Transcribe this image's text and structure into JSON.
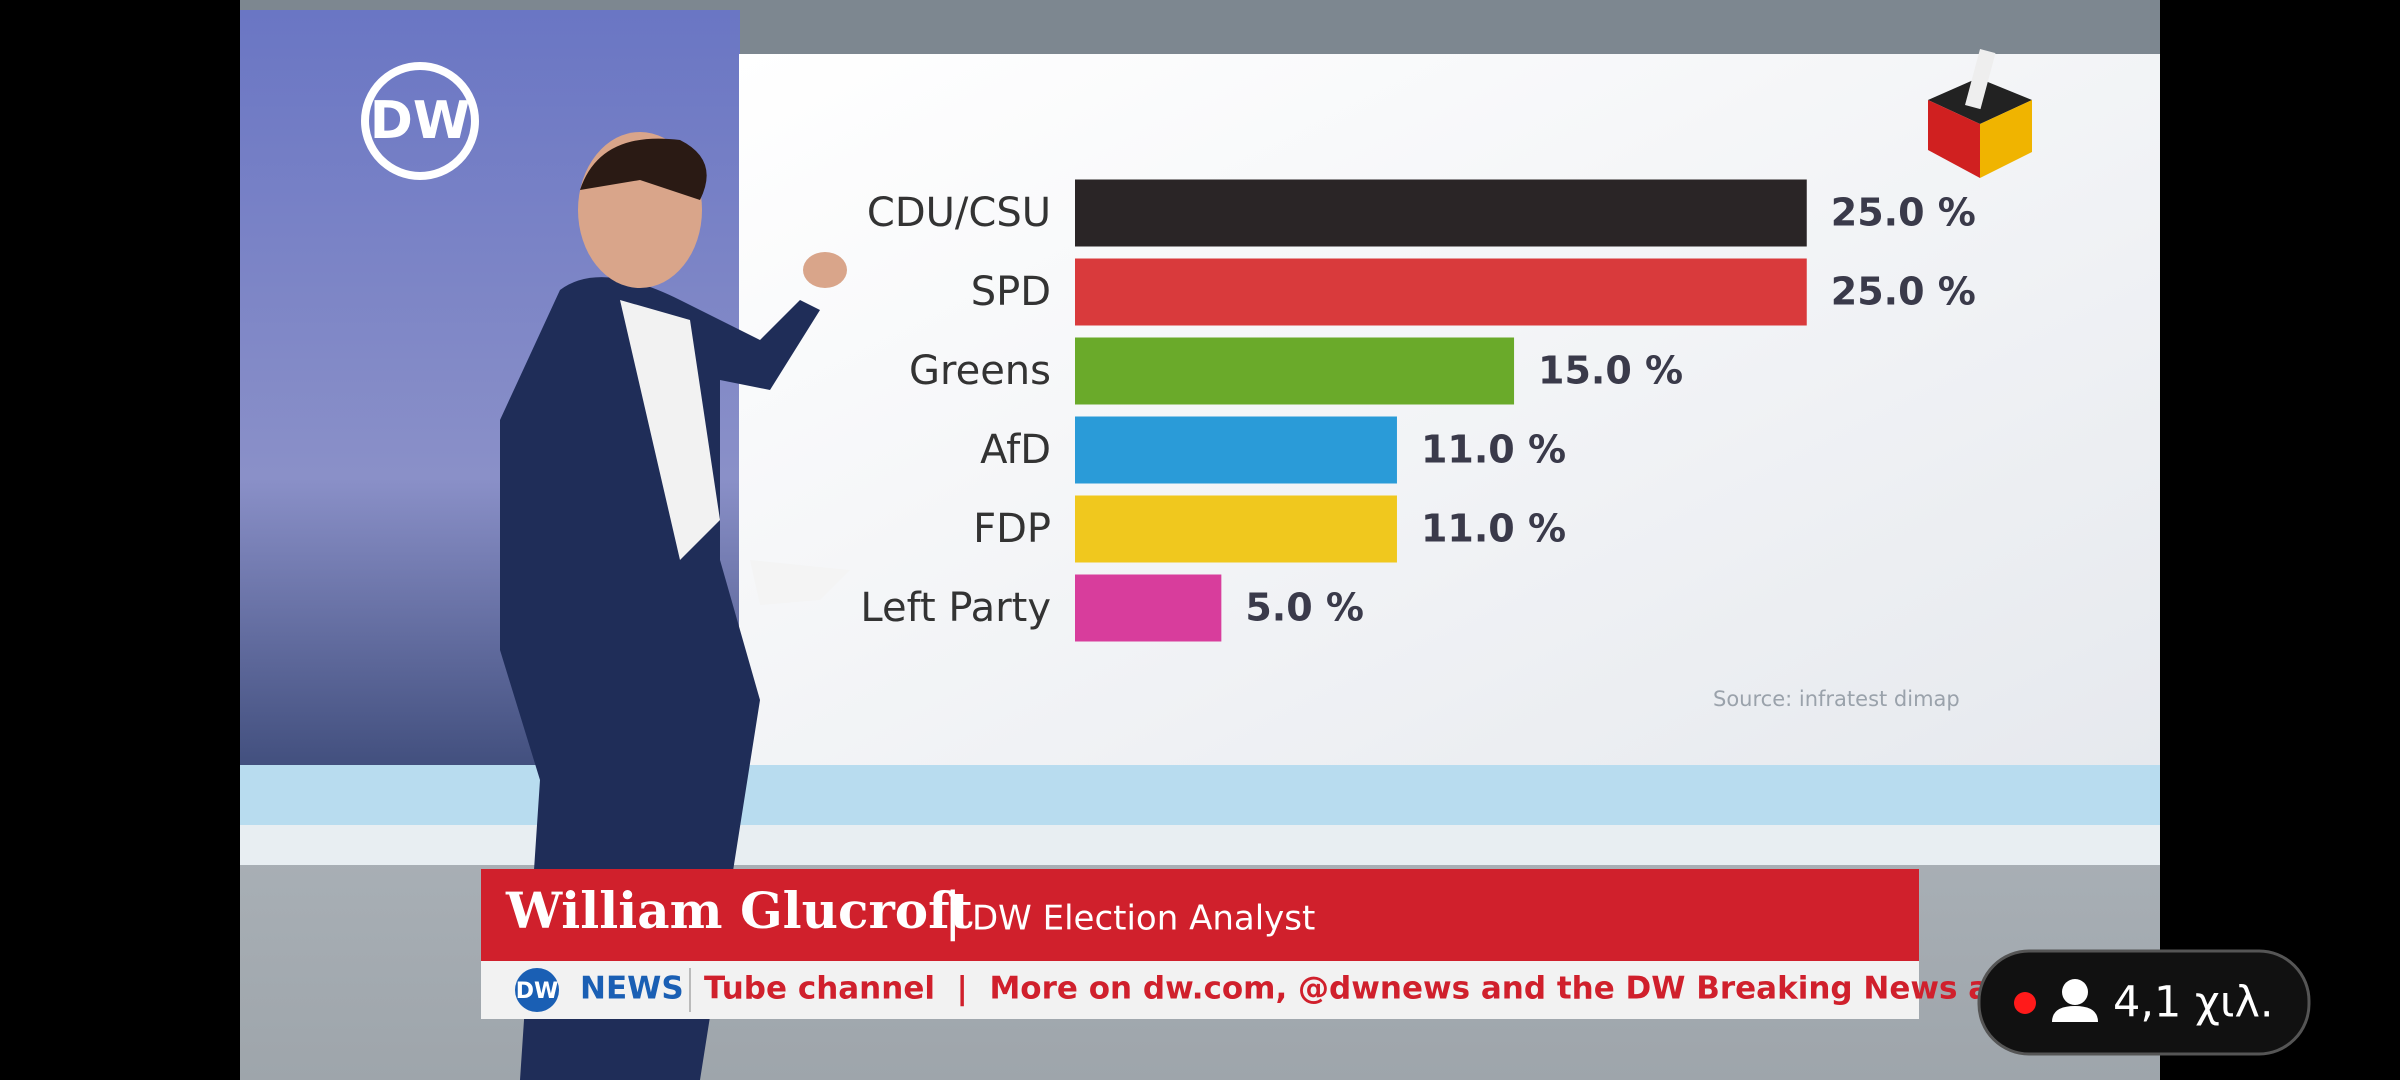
{
  "logo": "DW",
  "chart_data": {
    "type": "bar",
    "categories": [
      "CDU/CSU",
      "SPD",
      "Greens",
      "AfD",
      "FDP",
      "Left Party"
    ],
    "values": [
      25,
      25,
      15,
      11,
      11,
      5
    ],
    "value_labels": [
      "25.0 %",
      "25.0 %",
      "15.0 %",
      "11.0 %",
      "11.0 %",
      "5.0 %"
    ],
    "colors": [
      "#2a2526",
      "#d93a3c",
      "#6aaa2a",
      "#2a9bd8",
      "#f0c81e",
      "#d83d9c"
    ],
    "source": "Source: infratest dimap"
  },
  "lower_third": {
    "name": "William Glucroft",
    "separator": "|",
    "role": "DW Election Analyst",
    "ticker_brand": "NEWS",
    "ticker_text": "Tube channel  |  More on dw.com, @dwnews and the DW Breaking News app"
  },
  "live_viewers": "4,1 χιλ."
}
